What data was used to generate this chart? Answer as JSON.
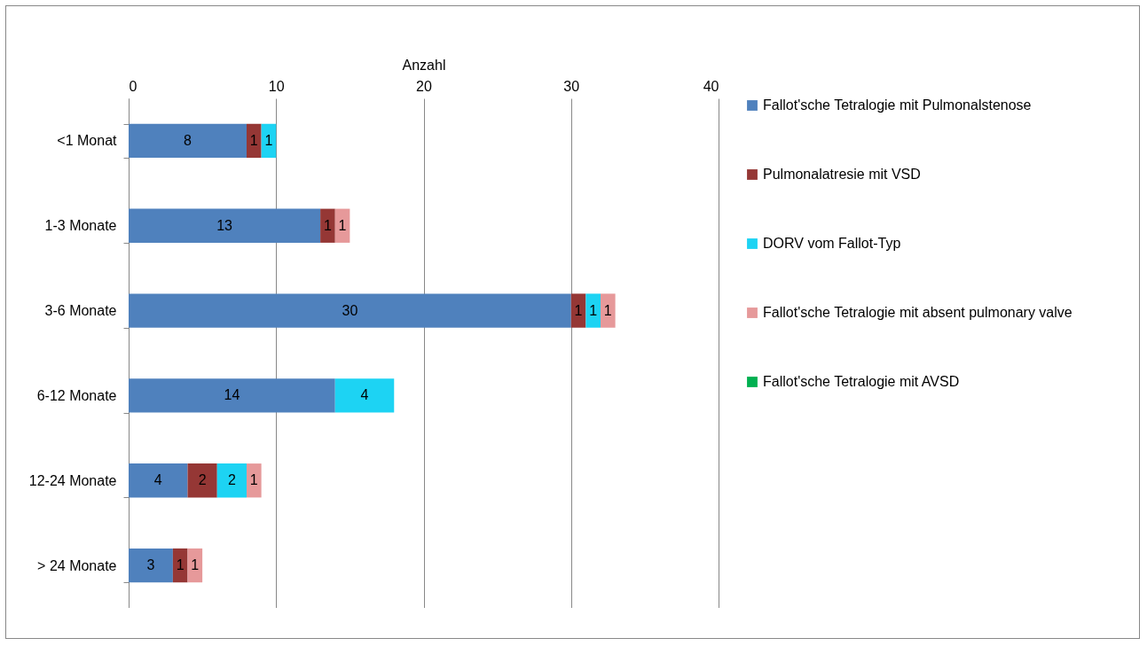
{
  "chart_data": {
    "type": "bar",
    "orientation": "horizontal",
    "stacked": true,
    "xlabel": "Anzahl",
    "categories": [
      "<1 Monat",
      "1-3 Monate",
      "3-6 Monate",
      "6-12 Monate",
      "12-24 Monate",
      "> 24 Monate"
    ],
    "series": [
      {
        "name": "Fallot'sche Tetralogie mit Pulmonalstenose",
        "color": "#4f81bd",
        "values": [
          8,
          13,
          30,
          14,
          4,
          3
        ]
      },
      {
        "name": "Pulmonalatresie mit VSD",
        "color": "#953735",
        "values": [
          1,
          1,
          1,
          null,
          2,
          1
        ]
      },
      {
        "name": "DORV vom Fallot-Typ",
        "color": "#1dd3f3",
        "values": [
          1,
          null,
          1,
          4,
          2,
          null
        ]
      },
      {
        "name": "Fallot'sche Tetralogie mit absent pulmonary valve",
        "color": "#e6999a",
        "values": [
          null,
          1,
          1,
          null,
          1,
          1
        ]
      },
      {
        "name": "Fallot'sche Tetralogie mit AVSD",
        "color": "#00b050",
        "values": [
          null,
          null,
          null,
          null,
          null,
          null
        ]
      }
    ],
    "xlim": [
      0,
      40
    ],
    "xticks": [
      0,
      10,
      20,
      30,
      40
    ],
    "grid": "x",
    "legend": "right",
    "data_labels": true
  }
}
